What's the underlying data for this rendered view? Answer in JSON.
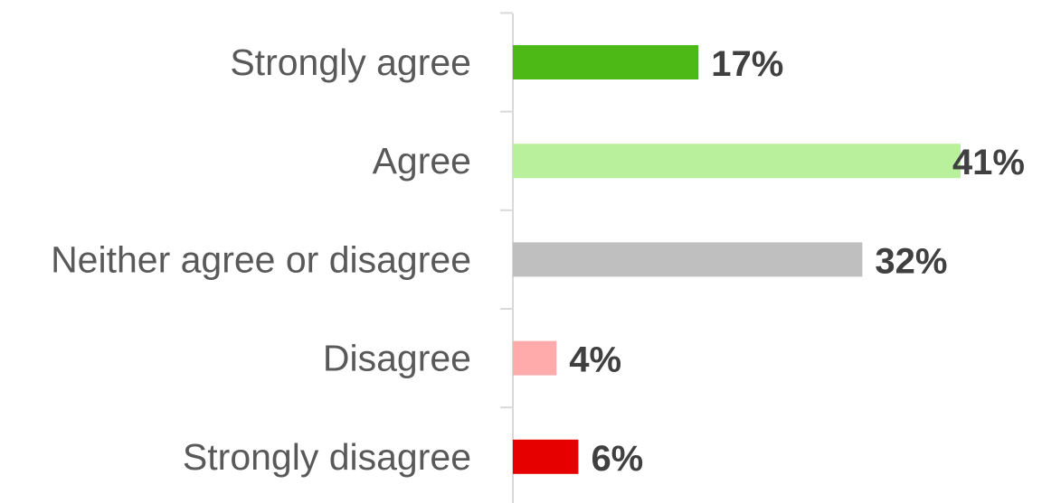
{
  "chart_data": {
    "type": "bar",
    "orientation": "horizontal",
    "categories": [
      "Strongly agree",
      "Agree",
      "Neither agree or disagree",
      "Disagree",
      "Strongly disagree"
    ],
    "values": [
      17,
      41,
      32,
      4,
      6
    ],
    "value_labels": [
      "17%",
      "41%",
      "32%",
      "4%",
      "6%"
    ],
    "colors": [
      "#4cb917",
      "#b8f09c",
      "#bfbfbf",
      "#ffabab",
      "#e60000"
    ],
    "title": "",
    "xlabel": "",
    "ylabel": "",
    "xlim": [
      0,
      41
    ],
    "grid": false,
    "legend": "none"
  }
}
